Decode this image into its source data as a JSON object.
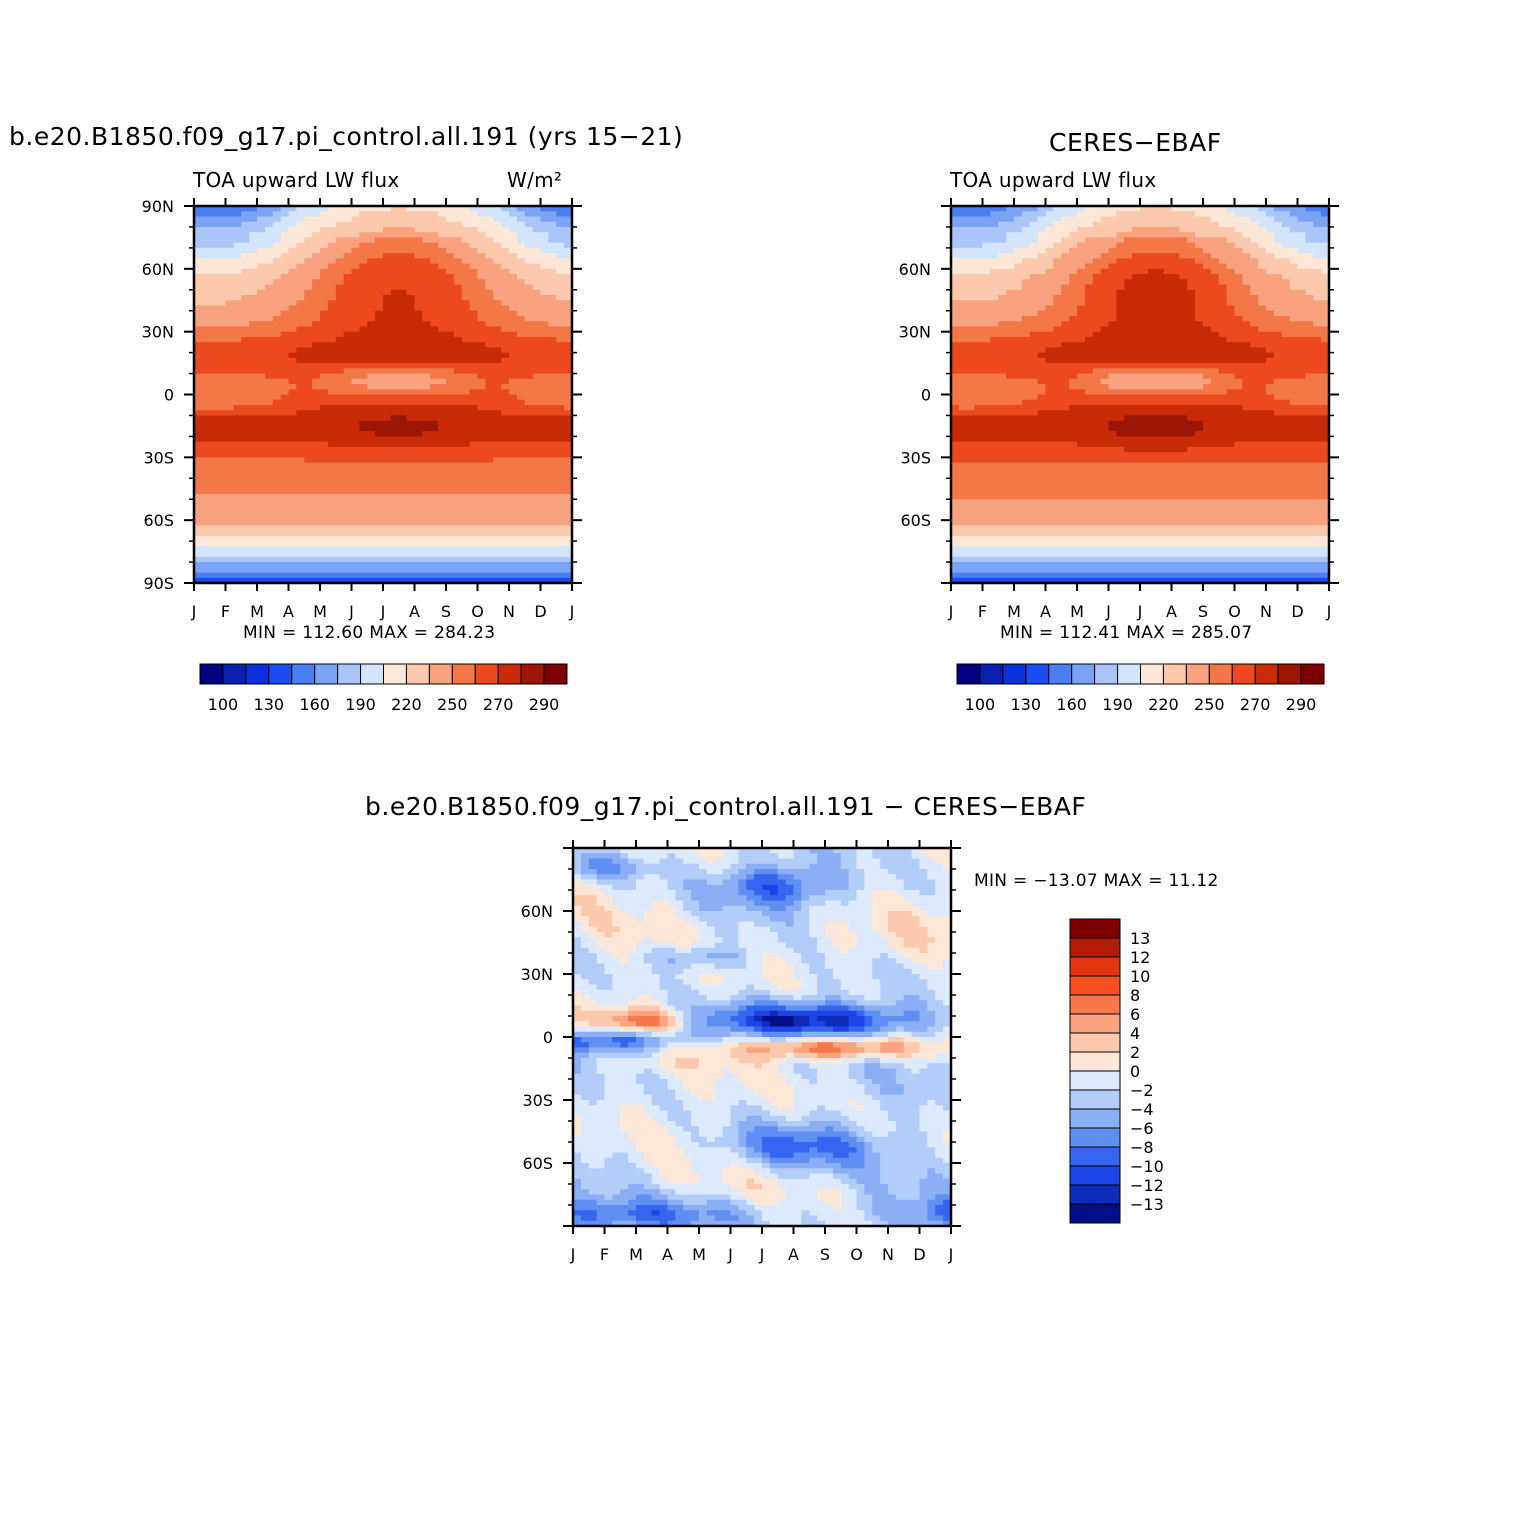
{
  "colors": {
    "abs_scale": [
      "#000080",
      "#0a1fb0",
      "#0d31d8",
      "#1a4df0",
      "#4a7ef5",
      "#7aa3f5",
      "#a9c5f9",
      "#d2e5fb",
      "#fde8d8",
      "#fcc9ad",
      "#f8a27f",
      "#f47748",
      "#ec4a1e",
      "#c82b08",
      "#9c1505",
      "#7c0000"
    ],
    "diff_scale": [
      "#7c0000",
      "#b21c07",
      "#e5350d",
      "#f5501e",
      "#f9784b",
      "#fba37e",
      "#fcc9ad",
      "#fde8d8",
      "#ddeafc",
      "#b3cdfa",
      "#8aaff5",
      "#5f8ff2",
      "#3665f0",
      "#1c44e6",
      "#0d2cbb",
      "#000e8a"
    ]
  },
  "chart_data": [
    {
      "type": "heatmap",
      "id": "model",
      "title": "b.e20.B1850.f09_g17.pi_control.all.191 (yrs 15−21)",
      "subtitle_left": "TOA upward LW flux",
      "subtitle_right": "W/m²",
      "x_tick_labels": [
        "J",
        "F",
        "M",
        "A",
        "M",
        "J",
        "J",
        "A",
        "S",
        "O",
        "N",
        "D",
        "J"
      ],
      "y_tick_labels": [
        "90N",
        "60N",
        "30N",
        "0",
        "30S",
        "60S",
        "90S"
      ],
      "ylim": [
        -90,
        90
      ],
      "min_max_text": "MIN =  112.60  MAX =  284.23",
      "min": 112.6,
      "max": 284.23,
      "colorbar_labels": [
        "100",
        "130",
        "160",
        "190",
        "220",
        "250",
        "270",
        "290"
      ],
      "colorbar_range": [
        90,
        300
      ]
    },
    {
      "type": "heatmap",
      "id": "obs",
      "title": "CERES−EBAF",
      "subtitle_left": "TOA upward LW flux",
      "x_tick_labels": [
        "J",
        "F",
        "M",
        "A",
        "M",
        "J",
        "J",
        "A",
        "S",
        "O",
        "N",
        "D",
        "J"
      ],
      "y_tick_labels": [
        "60N",
        "30N",
        "0",
        "30S",
        "60S"
      ],
      "ylim": [
        -90,
        90
      ],
      "min_max_text": "MIN =  112.41  MAX =  285.07",
      "min": 112.41,
      "max": 285.07,
      "colorbar_labels": [
        "100",
        "130",
        "160",
        "190",
        "220",
        "250",
        "270",
        "290"
      ],
      "colorbar_range": [
        90,
        300
      ]
    },
    {
      "type": "heatmap",
      "id": "diff",
      "title": "b.e20.B1850.f09_g17.pi_control.all.191  −  CERES−EBAF",
      "x_tick_labels": [
        "J",
        "F",
        "M",
        "A",
        "M",
        "J",
        "J",
        "A",
        "S",
        "O",
        "N",
        "D",
        "J"
      ],
      "y_tick_labels": [
        "60N",
        "30N",
        "0",
        "30S",
        "60S"
      ],
      "ylim": [
        -90,
        90
      ],
      "min_max_text": "MIN = −13.07  MAX =   11.12",
      "min": -13.07,
      "max": 11.12,
      "colorbar_labels": [
        "13",
        "12",
        "10",
        "8",
        "6",
        "4",
        "2",
        "0",
        "−2",
        "−4",
        "−6",
        "−8",
        "−10",
        "−12",
        "−13"
      ]
    }
  ]
}
